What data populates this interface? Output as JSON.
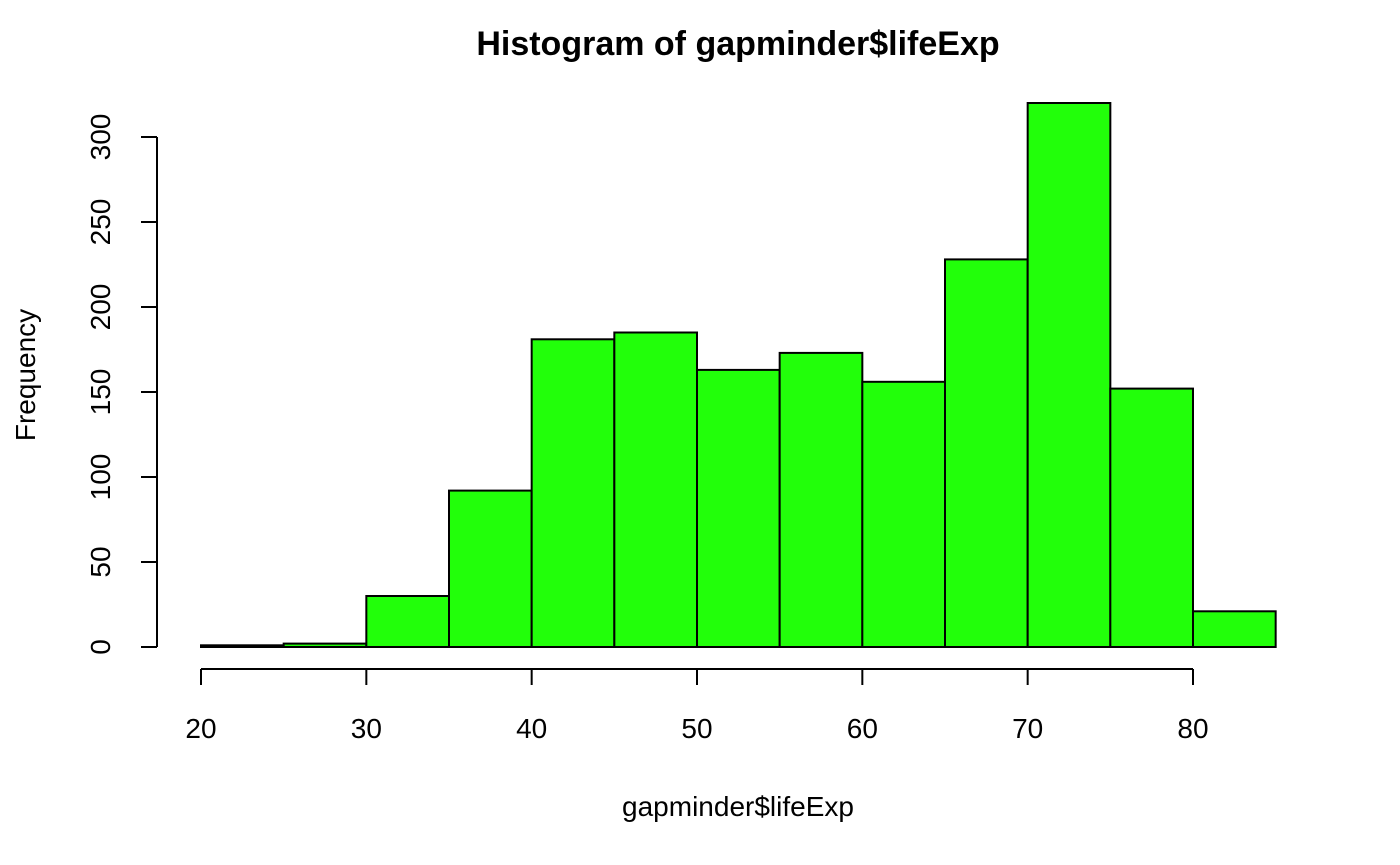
{
  "chart_data": {
    "type": "bar",
    "title": "Histogram of gapminder$lifeExp",
    "xlabel": "gapminder$lifeExp",
    "ylabel": "Frequency",
    "bin_edges": [
      20,
      25,
      30,
      35,
      40,
      45,
      50,
      55,
      60,
      65,
      70,
      75,
      80,
      85
    ],
    "values": [
      1,
      2,
      30,
      92,
      181,
      185,
      163,
      173,
      156,
      228,
      320,
      152,
      21
    ],
    "x_ticks": [
      "20",
      "30",
      "40",
      "50",
      "60",
      "70",
      "80"
    ],
    "y_ticks": [
      "0",
      "50",
      "100",
      "150",
      "200",
      "250",
      "300"
    ],
    "xlim": [
      20,
      85
    ],
    "ylim": [
      0,
      320
    ],
    "bar_color": "#22ff0a",
    "edge_color": "#000000",
    "grid": false
  }
}
